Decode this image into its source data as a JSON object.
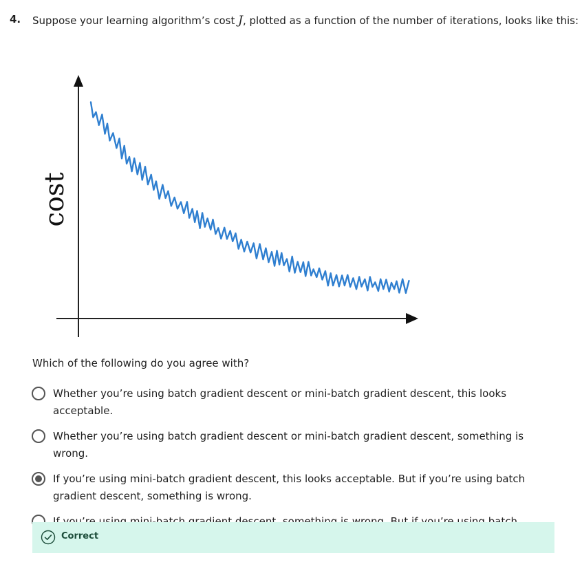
{
  "question": {
    "number": "4.",
    "text_before": "Suppose your learning algorithm’s cost ",
    "variable": "J",
    "text_after": ", plotted as a function of the number of iterations, looks like this:"
  },
  "chart_data": {
    "type": "line",
    "title": "",
    "xlabel": "",
    "ylabel": "cost",
    "description_trend": "noisy decreasing",
    "color": "#2f7fd0"
  },
  "prompt": "Which of the following do you agree with?",
  "options": [
    {
      "label": "Whether you’re using batch gradient descent or mini-batch gradient descent, this looks acceptable.",
      "selected": false
    },
    {
      "label": "Whether you’re using batch gradient descent or mini-batch gradient descent, something is wrong.",
      "selected": false
    },
    {
      "label": "If you’re using mini-batch gradient descent, this looks acceptable. But if you’re using batch gradient descent, something is wrong.",
      "selected": true
    },
    {
      "label": "If you’re using mini-batch gradient descent, something is wrong. But if you’re using batch gradient descent, this looks acceptable.",
      "selected": false
    }
  ],
  "feedback": {
    "label": "Correct",
    "icon": "check-circle-icon",
    "color": "#1c4d3a",
    "background": "#d6f6ec"
  }
}
